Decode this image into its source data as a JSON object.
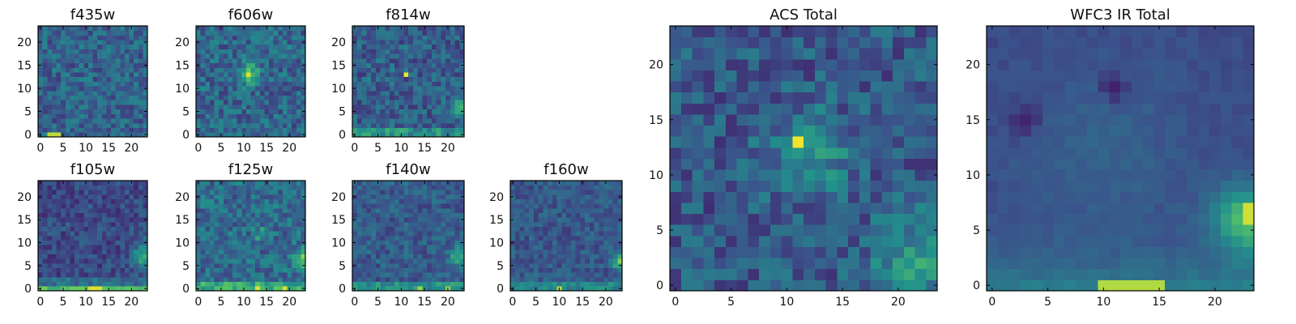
{
  "chart_data": [
    {
      "type": "heatmap",
      "title": "f435w",
      "x_ticks": [
        "0",
        "5",
        "10",
        "15",
        "20"
      ],
      "y_ticks": [
        "0",
        "5",
        "10",
        "15",
        "20"
      ],
      "xlim": [
        0,
        24
      ],
      "ylim": [
        0,
        24
      ],
      "grid_size": 24,
      "colormap": "viridis",
      "grid": false
    },
    {
      "type": "heatmap",
      "title": "f606w",
      "x_ticks": [
        "0",
        "5",
        "10",
        "15",
        "20"
      ],
      "y_ticks": [
        "0",
        "5",
        "10",
        "15",
        "20"
      ],
      "xlim": [
        0,
        24
      ],
      "ylim": [
        0,
        24
      ],
      "grid_size": 24,
      "colormap": "viridis",
      "grid": false
    },
    {
      "type": "heatmap",
      "title": "f814w",
      "x_ticks": [
        "0",
        "5",
        "10",
        "15",
        "20"
      ],
      "y_ticks": [
        "0",
        "5",
        "10",
        "15",
        "20"
      ],
      "xlim": [
        0,
        24
      ],
      "ylim": [
        0,
        24
      ],
      "grid_size": 24,
      "colormap": "viridis",
      "grid": false
    },
    {
      "type": "heatmap",
      "title": "f105w",
      "x_ticks": [
        "0",
        "5",
        "10",
        "15",
        "20"
      ],
      "y_ticks": [
        "0",
        "5",
        "10",
        "15",
        "20"
      ],
      "xlim": [
        0,
        24
      ],
      "ylim": [
        0,
        24
      ],
      "grid_size": 24,
      "colormap": "viridis",
      "grid": false
    },
    {
      "type": "heatmap",
      "title": "f125w",
      "x_ticks": [
        "0",
        "5",
        "10",
        "15",
        "20"
      ],
      "y_ticks": [
        "0",
        "5",
        "10",
        "15",
        "20"
      ],
      "xlim": [
        0,
        24
      ],
      "ylim": [
        0,
        24
      ],
      "grid_size": 24,
      "colormap": "viridis",
      "grid": false
    },
    {
      "type": "heatmap",
      "title": "f140w",
      "x_ticks": [
        "0",
        "5",
        "10",
        "15",
        "20"
      ],
      "y_ticks": [
        "0",
        "5",
        "10",
        "15",
        "20"
      ],
      "xlim": [
        0,
        24
      ],
      "ylim": [
        0,
        24
      ],
      "grid_size": 24,
      "colormap": "viridis",
      "grid": false
    },
    {
      "type": "heatmap",
      "title": "f160w",
      "x_ticks": [
        "0",
        "5",
        "10",
        "15",
        "20"
      ],
      "y_ticks": [
        "0",
        "5",
        "10",
        "15",
        "20"
      ],
      "xlim": [
        0,
        24
      ],
      "ylim": [
        0,
        24
      ],
      "grid_size": 24,
      "colormap": "viridis",
      "grid": false
    },
    {
      "type": "heatmap",
      "title": "ACS Total",
      "x_ticks": [
        "0",
        "5",
        "10",
        "15",
        "20"
      ],
      "y_ticks": [
        "0",
        "5",
        "10",
        "15",
        "20"
      ],
      "xlim": [
        0,
        24
      ],
      "ylim": [
        0,
        24
      ],
      "grid_size": 24,
      "colormap": "viridis",
      "grid": false
    },
    {
      "type": "heatmap",
      "title": "WFC3 IR Total",
      "x_ticks": [
        "0",
        "5",
        "10",
        "15",
        "20"
      ],
      "y_ticks": [
        "0",
        "5",
        "10",
        "15",
        "20"
      ],
      "xlim": [
        0,
        24
      ],
      "ylim": [
        0,
        24
      ],
      "grid_size": 24,
      "colormap": "viridis",
      "grid": false
    }
  ],
  "colors": {
    "viridis_stops": [
      "#440154",
      "#3b528b",
      "#21918c",
      "#5ec962",
      "#fde725"
    ]
  }
}
